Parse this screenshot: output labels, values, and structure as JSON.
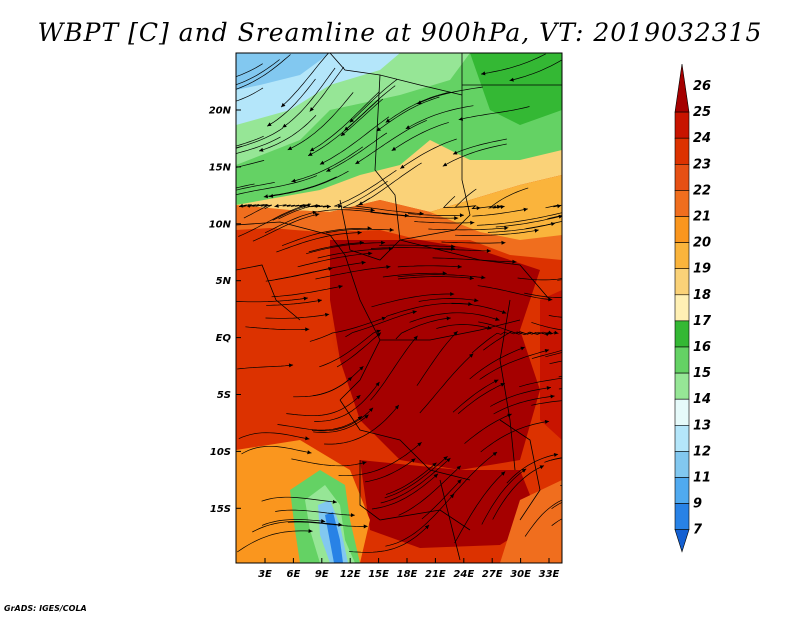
{
  "title": "WBPT [C] and Sreamline at 900hPa, VT: 2019032315",
  "credit": "GrADS: IGES/COLA",
  "map": {
    "lat_labels": [
      "20N",
      "15N",
      "10N",
      "5N",
      "EQ",
      "5S",
      "10S",
      "15S"
    ],
    "lon_labels": [
      "3E",
      "6E",
      "9E",
      "12E",
      "15E",
      "18E",
      "21E",
      "24E",
      "27E",
      "30E",
      "33E"
    ]
  },
  "colorbar": {
    "levels": [
      "26",
      "25",
      "24",
      "23",
      "22",
      "21",
      "20",
      "19",
      "18",
      "17",
      "16",
      "15",
      "14",
      "13",
      "12",
      "11",
      "9",
      "7"
    ],
    "colors": [
      "#a50000",
      "#c81400",
      "#dc3200",
      "#e65014",
      "#f06e1e",
      "#fa961e",
      "#fab43c",
      "#fad278",
      "#fff0b4",
      "#34b834",
      "#64d264",
      "#96e696",
      "#e6fafa",
      "#b4e6fa",
      "#82c8f0",
      "#50aaf0",
      "#2882e6",
      "#1460d2"
    ]
  }
}
